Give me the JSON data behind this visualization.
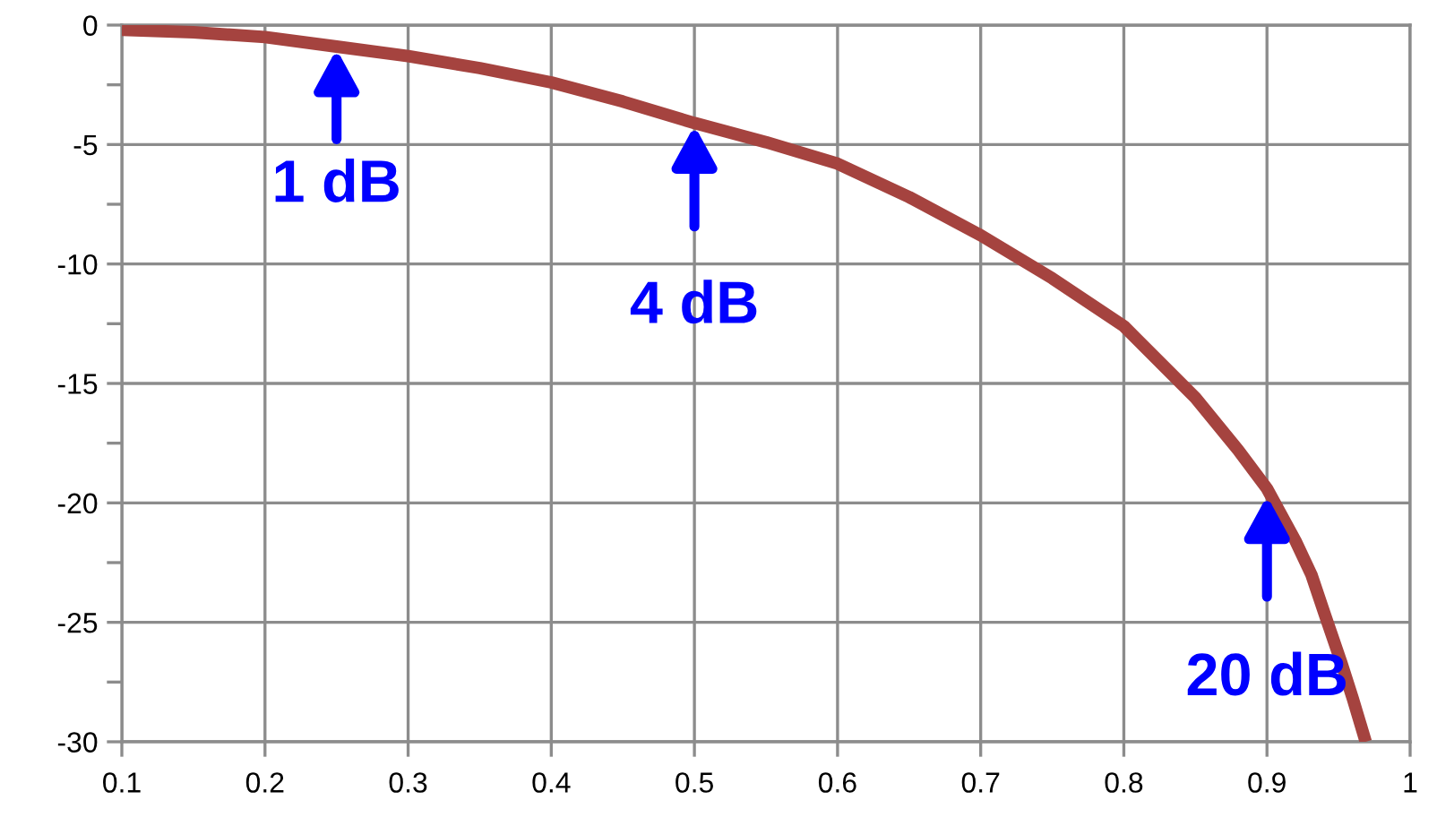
{
  "chart_data": {
    "type": "line",
    "x": [
      0.1,
      0.15,
      0.2,
      0.25,
      0.3,
      0.35,
      0.4,
      0.45,
      0.5,
      0.55,
      0.6,
      0.65,
      0.7,
      0.75,
      0.8,
      0.85,
      0.88,
      0.9,
      0.92,
      0.931,
      0.94,
      0.952,
      0.96,
      0.969
    ],
    "series": [
      {
        "color": "#a5433f",
        "values": [
          -0.2,
          -0.3,
          -0.5,
          -0.9,
          -1.3,
          -1.8,
          -2.4,
          -3.2,
          -4.1,
          -4.9,
          -5.8,
          -7.2,
          -8.8,
          -10.6,
          -12.6,
          -15.6,
          -17.8,
          -19.4,
          -21.6,
          -23,
          -24.6,
          -26.7,
          -28.2,
          -30
        ]
      }
    ],
    "xlim": [
      0.1,
      1
    ],
    "xticks": [
      0.1,
      0.2,
      0.3,
      0.4,
      0.5,
      0.6,
      0.7,
      0.8,
      0.9,
      1
    ],
    "ylim": [
      -30,
      0
    ],
    "yticks": [
      -30,
      {
        "value": -27.5,
        "label": null
      },
      -25,
      {
        "value": -22.5,
        "label": null
      },
      -20,
      {
        "value": -17.5,
        "label": null
      },
      -15,
      {
        "value": -12.5,
        "label": null
      },
      -10,
      {
        "value": -7.5,
        "label": null
      },
      -5,
      {
        "value": -2.5,
        "label": null
      },
      0
    ],
    "grid": true,
    "marker": "none",
    "line_style": "solid",
    "annotations": [
      {
        "text": "1 dB",
        "x": 0.25,
        "y": -0.9
      },
      {
        "text": "4 dB",
        "x": 0.5,
        "y": -4.1
      },
      {
        "text": "20 dB",
        "x": 0.9,
        "y": -19.6
      }
    ]
  }
}
